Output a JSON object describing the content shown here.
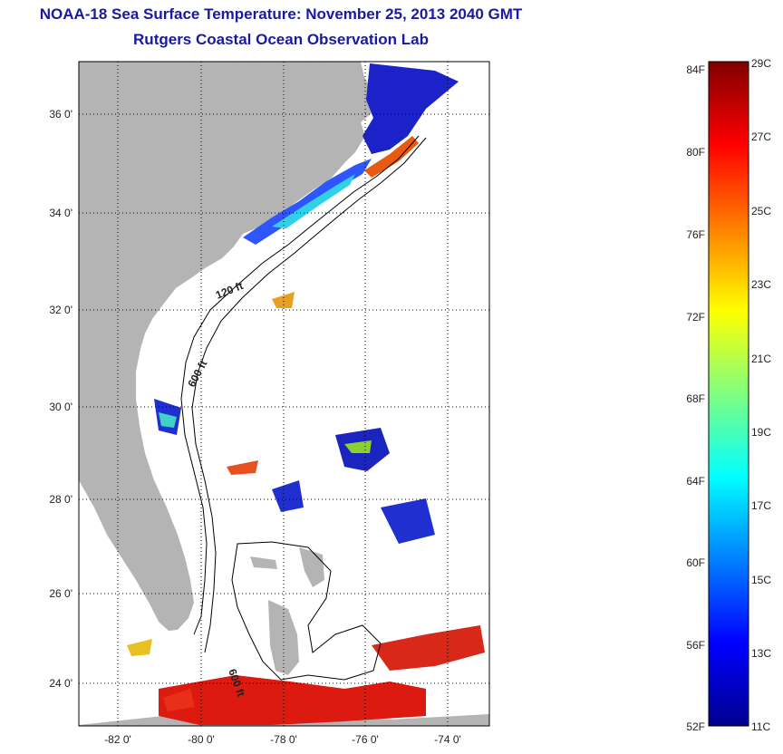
{
  "header": {
    "title": "NOAA-18 Sea Surface Temperature:  November 25, 2013 2040 GMT",
    "subtitle": "Rutgers Coastal Ocean Observation Lab"
  },
  "map": {
    "lat_ticks": [
      "36 0'",
      "34 0'",
      "32 0'",
      "30 0'",
      "28 0'",
      "26 0'",
      "24 0'"
    ],
    "lon_ticks": [
      "-82 0'",
      "-80 0'",
      "-78 0'",
      "-76 0'",
      "-74 0'"
    ],
    "contour_labels": [
      "120 ft",
      "600 ft",
      "600 ft"
    ],
    "colors": {
      "land": "#b4b4b4",
      "ocean_nodata": "#ffffff"
    }
  },
  "colorbar": {
    "fahrenheit_labels": [
      "84F",
      "80F",
      "76F",
      "72F",
      "68F",
      "64F",
      "60F",
      "56F",
      "52F"
    ],
    "celsius_labels": [
      "29C",
      "27C",
      "25C",
      "23C",
      "21C",
      "19C",
      "17C",
      "15C",
      "13C",
      "11C"
    ]
  }
}
